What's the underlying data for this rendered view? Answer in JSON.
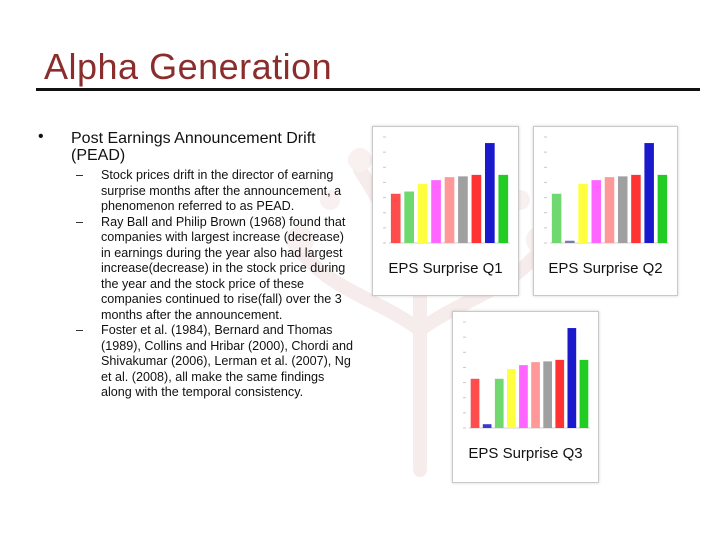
{
  "slide": {
    "title": "Alpha Generation",
    "bullet_symbol": "•",
    "main_bullet": "Post Earnings Announcement Drift (PEAD)",
    "sub_dash": "–",
    "sub_bullets": [
      "Stock prices drift in the director of earning surprise months after the announcement, a phenomenon referred to as PEAD.",
      "Ray Ball and Philip Brown (1968) found that companies with largest increase (decrease) in earnings during the year also had largest increase(decrease) in the stock price during the year and the stock price of these companies continued to rise(fall) over the 3 months after the announcement.",
      "Foster et al. (1984), Bernard and Thomas (1989), Collins and Hribar (2000), Chordi and Shivakumar (2006), Lerman et al. (2007), Ng et al. (2008), all make the same findings along with the temporal consistency."
    ]
  },
  "chart_data": [
    {
      "type": "bar",
      "title": "EPS Surprise Q1",
      "ylim": [
        0,
        14
      ],
      "colors": [
        "#ff4d4d",
        "#6fd86f",
        "#ffff40",
        "#ff66ff",
        "#ff9999",
        "#a0a0a0",
        "#ff3333",
        "#1a1acc",
        "#22cc22"
      ],
      "values": [
        6.5,
        6.8,
        7.8,
        8.3,
        8.7,
        8.8,
        9.0,
        13.2,
        9.0
      ]
    },
    {
      "type": "bar",
      "title": "EPS Surprise Q2",
      "ylim": [
        0,
        14
      ],
      "colors": [
        "#6fd86f",
        "#7a7aaa",
        "#ffff40",
        "#ff66ff",
        "#ff9999",
        "#a0a0a0",
        "#ff3333",
        "#1a1acc",
        "#22cc22"
      ],
      "values": [
        6.5,
        0.3,
        7.8,
        8.3,
        8.7,
        8.8,
        9.0,
        13.2,
        9.0
      ]
    },
    {
      "type": "bar",
      "title": "EPS Surprise Q3",
      "ylim": [
        0,
        14
      ],
      "colors": [
        "#ff4d4d",
        "#3a3acc",
        "#6fd86f",
        "#ffff40",
        "#ff66ff",
        "#ff9999",
        "#a0a0a0",
        "#ff3333",
        "#1a1acc",
        "#22cc22"
      ],
      "values": [
        6.5,
        0.5,
        6.5,
        7.8,
        8.3,
        8.7,
        8.8,
        9.0,
        13.2,
        9.0
      ]
    }
  ]
}
